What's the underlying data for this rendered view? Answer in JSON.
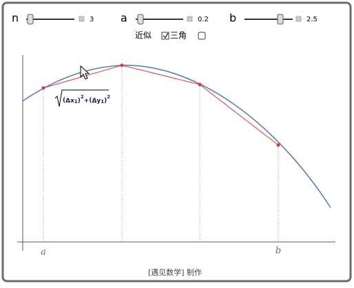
{
  "controls": [
    {
      "label": "n",
      "value": "3"
    },
    {
      "label": "a",
      "value": "0.2"
    },
    {
      "label": "b",
      "value": "2.5"
    }
  ],
  "options": {
    "approx": "近似",
    "triangle": "三角"
  },
  "formula": {
    "dx": "Δx",
    "dy": "Δy",
    "sub": "1",
    "sup": "2",
    "plus": "+"
  },
  "axis_labels": {
    "left": "a",
    "right": "b"
  },
  "footer": "[遇见数学] 制作"
}
